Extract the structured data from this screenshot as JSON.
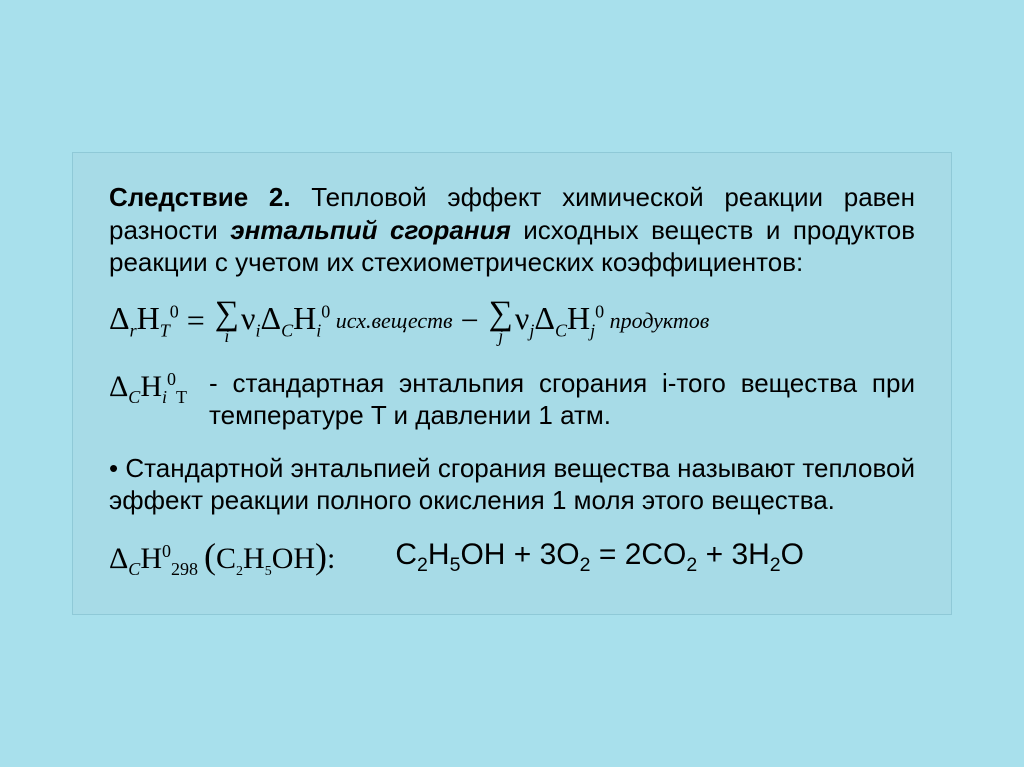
{
  "card": {
    "bg": "#a7dbe7",
    "border": "#8fc9d7"
  },
  "p1": {
    "lead": "Следствие 2.",
    "text1": " Тепловой эффект химической реакции равен разности ",
    "em": "энтальпий сгорания",
    "text2": " исходных веществ и продуктов реакции с учетом их стехиометрических коэффициентов:"
  },
  "eq": {
    "label1": "исх.веществ",
    "label2": "продуктов"
  },
  "def": {
    "text": "- стандартная энтальпия сгорания i-того вещества при температуре T и давлении 1 атм."
  },
  "p2": "• Стандартной энтальпией сгорания вещества называют тепловой эффект реакции полного окисления 1 моля этого вещества.",
  "chem": "C₂H₅OH + 3O₂ = 2CO₂ + 3H₂O"
}
